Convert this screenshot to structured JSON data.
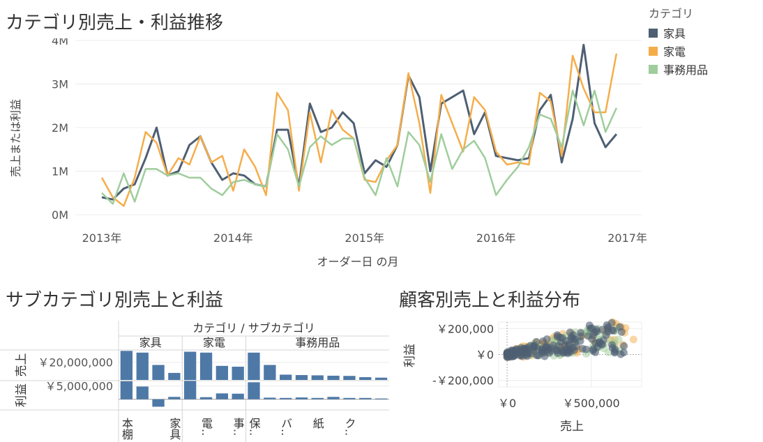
{
  "dashboard": {
    "line_title": "カテゴリ別売上・利益推移",
    "bar_title": "サブカテゴリ別売上と利益",
    "scatter_title": "顧客別売上と利益分布"
  },
  "legend": {
    "title": "カテゴリ",
    "items": [
      {
        "label": "家具",
        "color": "#4e5f73"
      },
      {
        "label": "家電",
        "color": "#f5ad4a"
      },
      {
        "label": "事務用品",
        "color": "#9fcd9c"
      }
    ]
  },
  "chart_data": [
    {
      "type": "line",
      "title": "カテゴリ別売上・利益推移",
      "xlabel": "オーダー日 の月",
      "ylabel": "売上または利益",
      "x_ticks": [
        "2013年",
        "2014年",
        "2015年",
        "2016年",
        "2017年"
      ],
      "y_ticks": [
        "0M",
        "1M",
        "2M",
        "3M",
        "4M"
      ],
      "ylim": [
        0,
        4000000
      ],
      "grid": true,
      "x": [
        "2013-01",
        "2013-02",
        "2013-03",
        "2013-04",
        "2013-05",
        "2013-06",
        "2013-07",
        "2013-08",
        "2013-09",
        "2013-10",
        "2013-11",
        "2013-12",
        "2014-01",
        "2014-02",
        "2014-03",
        "2014-04",
        "2014-05",
        "2014-06",
        "2014-07",
        "2014-08",
        "2014-09",
        "2014-10",
        "2014-11",
        "2014-12",
        "2015-01",
        "2015-02",
        "2015-03",
        "2015-04",
        "2015-05",
        "2015-06",
        "2015-07",
        "2015-08",
        "2015-09",
        "2015-10",
        "2015-11",
        "2015-12",
        "2016-01",
        "2016-02",
        "2016-03",
        "2016-04",
        "2016-05",
        "2016-06",
        "2016-07",
        "2016-08",
        "2016-09",
        "2016-10",
        "2016-11",
        "2016-12"
      ],
      "series": [
        {
          "name": "家具",
          "color": "#4e5f73",
          "values": [
            400000,
            350000,
            600000,
            700000,
            1300000,
            2000000,
            900000,
            1000000,
            1600000,
            1800000,
            1200000,
            800000,
            950000,
            900000,
            700000,
            650000,
            1950000,
            1950000,
            650000,
            2550000,
            1900000,
            2000000,
            2350000,
            2100000,
            950000,
            1250000,
            1100000,
            1600000,
            3200000,
            2700000,
            1000000,
            2550000,
            2700000,
            2850000,
            1850000,
            2350000,
            1350000,
            1300000,
            1250000,
            1300000,
            2400000,
            2750000,
            1200000,
            2200000,
            3900000,
            2100000,
            1550000,
            1850000
          ]
        },
        {
          "name": "家電",
          "color": "#f5ad4a",
          "values": [
            850000,
            400000,
            200000,
            850000,
            1900000,
            1650000,
            900000,
            1300000,
            1150000,
            1800000,
            1200000,
            1350000,
            550000,
            1500000,
            1100000,
            450000,
            2800000,
            2400000,
            550000,
            2350000,
            1200000,
            2400000,
            1950000,
            1750000,
            800000,
            750000,
            1250000,
            1600000,
            3250000,
            2100000,
            500000,
            2750000,
            2100000,
            1450000,
            2700000,
            2400000,
            1450000,
            1150000,
            1200000,
            1150000,
            2800000,
            2600000,
            1350000,
            3650000,
            2900000,
            2350000,
            2350000,
            3700000
          ]
        },
        {
          "name": "事務用品",
          "color": "#9fcd9c",
          "values": [
            500000,
            250000,
            950000,
            300000,
            1050000,
            1050000,
            900000,
            950000,
            850000,
            850000,
            600000,
            450000,
            750000,
            800000,
            700000,
            650000,
            1850000,
            1500000,
            650000,
            1550000,
            1800000,
            1600000,
            1750000,
            1750000,
            850000,
            450000,
            1300000,
            650000,
            1900000,
            1600000,
            750000,
            1850000,
            1050000,
            1500000,
            1700000,
            1300000,
            450000,
            800000,
            1100000,
            1550000,
            2300000,
            2200000,
            1550000,
            2850000,
            2050000,
            2850000,
            1900000,
            2450000
          ]
        }
      ]
    },
    {
      "type": "bar",
      "title": "サブカテゴリ別売上と利益",
      "header": "カテゴリ / サブカテゴリ",
      "groups": [
        {
          "name": "家具",
          "count": 4
        },
        {
          "name": "家電",
          "count": 4
        },
        {
          "name": "事務用品",
          "count": 9
        }
      ],
      "categories": [
        "本棚",
        "",
        "",
        "家具",
        "",
        "電..",
        "",
        "事..",
        "保..",
        "",
        "バ..",
        "",
        "紙",
        "",
        "ク..",
        "",
        ""
      ],
      "rows": [
        {
          "label": "売上",
          "tick": "￥20,000,000",
          "tick_value": 20000000,
          "ylim": [
            0,
            34000000
          ]
        },
        {
          "label": "利益",
          "tick": "￥5,000,000",
          "tick_value": 5000000,
          "ylim": [
            -4000000,
            7000000
          ]
        }
      ],
      "series": [
        {
          "name": "売上",
          "color": "#4e79a7",
          "values": [
            33000000,
            31000000,
            17000000,
            8000000,
            32000000,
            31000000,
            16000000,
            15000000,
            31000000,
            17000000,
            6000000,
            5500000,
            5200000,
            4800000,
            4600000,
            3200000,
            2600000
          ]
        },
        {
          "name": "利益",
          "color": "#4e79a7",
          "values": [
            6800000,
            4800000,
            -2800000,
            900000,
            6900000,
            800000,
            2200000,
            2100000,
            6400000,
            600000,
            500000,
            700000,
            500000,
            900000,
            500000,
            500000,
            300000
          ]
        }
      ]
    },
    {
      "type": "scatter",
      "title": "顧客別売上と利益分布",
      "xlabel": "売上",
      "ylabel": "利益",
      "x_ticks": [
        "￥0",
        "￥500,000"
      ],
      "y_ticks": [
        "￥200,000",
        "￥0",
        "-￥200,000"
      ],
      "xlim": [
        -50000,
        800000
      ],
      "ylim": [
        -250000,
        250000
      ],
      "series": [
        {
          "name": "家具",
          "color": "#4e5f73"
        },
        {
          "name": "家電",
          "color": "#f5ad4a"
        },
        {
          "name": "事務用品",
          "color": "#9fcd9c"
        }
      ]
    }
  ]
}
